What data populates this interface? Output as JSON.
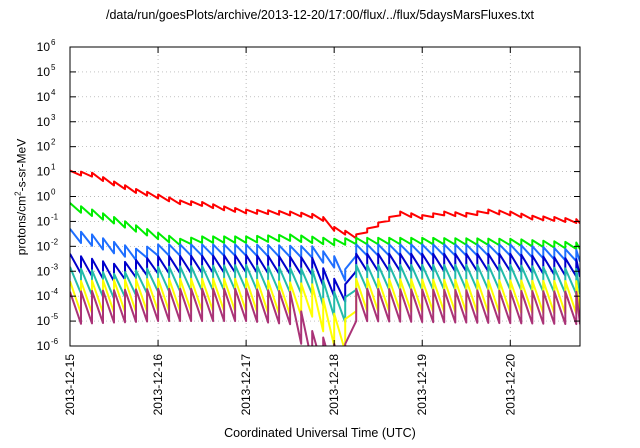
{
  "chart_data": {
    "type": "line",
    "title": "/data/run/goesPlots/archive/2013-12-20/17:00/flux/../flux/5daysMarsFluxes.txt",
    "xlabel": "Coordinated Universal Time (UTC)",
    "ylabel_parts": {
      "base": "protons/cm",
      "exp": "2",
      "rest": "-s-sr-MeV"
    },
    "yscale": "log",
    "ylim": [
      1e-06,
      1000000
    ],
    "y_ticks": [
      1e-06,
      1e-05,
      0.0001,
      0.001,
      0.01,
      0.1,
      1,
      10,
      100,
      1000,
      10000,
      100000,
      1000000
    ],
    "y_tick_labels": [
      {
        "base": "10",
        "exp": "-6"
      },
      {
        "base": "10",
        "exp": "-5"
      },
      {
        "base": "10",
        "exp": "-4"
      },
      {
        "base": "10",
        "exp": "-3"
      },
      {
        "base": "10",
        "exp": "-2"
      },
      {
        "base": "10",
        "exp": "-1"
      },
      {
        "base": "10",
        "exp": "0"
      },
      {
        "base": "10",
        "exp": "1"
      },
      {
        "base": "10",
        "exp": "2"
      },
      {
        "base": "10",
        "exp": "3"
      },
      {
        "base": "10",
        "exp": "4"
      },
      {
        "base": "10",
        "exp": "5"
      },
      {
        "base": "10",
        "exp": "6"
      }
    ],
    "x_ticks": [
      "2013-12-15",
      "2013-12-16",
      "2013-12-17",
      "2013-12-18",
      "2013-12-19",
      "2013-12-20"
    ],
    "xlim": [
      "2013-12-15",
      "2013-12-20 19:00"
    ],
    "grid": true,
    "grid_style": "dotted",
    "cycle_hours": 3,
    "series": [
      {
        "color": "#ff0000",
        "envelope": [
          [
            "2013-12-15 00:00",
            11
          ],
          [
            "2013-12-15 06:00",
            9
          ],
          [
            "2013-12-15 12:00",
            4
          ],
          [
            "2013-12-15 18:00",
            2
          ],
          [
            "2013-12-16 00:00",
            1.2
          ],
          [
            "2013-12-16 06:00",
            0.7
          ],
          [
            "2013-12-16 12:00",
            0.6
          ],
          [
            "2013-12-16 18:00",
            0.4
          ],
          [
            "2013-12-17 00:00",
            0.3
          ],
          [
            "2013-12-17 06:00",
            0.28
          ],
          [
            "2013-12-17 12:00",
            0.25
          ],
          [
            "2013-12-17 18:00",
            0.2
          ],
          [
            "2013-12-17 21:00",
            0.15
          ],
          [
            "2013-12-18 00:00",
            0.06
          ],
          [
            "2013-12-18 06:00",
            0.03
          ],
          [
            "2013-12-18 12:00",
            0.09
          ],
          [
            "2013-12-18 18:00",
            0.25
          ],
          [
            "2013-12-19 00:00",
            0.18
          ],
          [
            "2013-12-19 06:00",
            0.25
          ],
          [
            "2013-12-19 12:00",
            0.22
          ],
          [
            "2013-12-19 18:00",
            0.3
          ],
          [
            "2013-12-20 00:00",
            0.25
          ],
          [
            "2013-12-20 06:00",
            0.17
          ],
          [
            "2013-12-20 12:00",
            0.15
          ],
          [
            "2013-12-20 19:00",
            0.12
          ]
        ],
        "dip_ratio": 0.7
      },
      {
        "color": "#00ee00",
        "envelope": [
          [
            "2013-12-15 00:00",
            0.55
          ],
          [
            "2013-12-15 06:00",
            0.3
          ],
          [
            "2013-12-15 12:00",
            0.15
          ],
          [
            "2013-12-15 18:00",
            0.07
          ],
          [
            "2013-12-16 00:00",
            0.035
          ],
          [
            "2013-12-16 06:00",
            0.02
          ],
          [
            "2013-12-16 12:00",
            0.025
          ],
          [
            "2013-12-17 00:00",
            0.025
          ],
          [
            "2013-12-17 12:00",
            0.03
          ],
          [
            "2013-12-18 00:00",
            0.02
          ],
          [
            "2013-12-18 06:00",
            0.022
          ],
          [
            "2013-12-19 00:00",
            0.022
          ],
          [
            "2013-12-20 00:00",
            0.02
          ],
          [
            "2013-12-20 19:00",
            0.014
          ]
        ],
        "dip_ratio": 0.55
      },
      {
        "color": "#1f6fff",
        "envelope": [
          [
            "2013-12-15 00:00",
            0.05
          ],
          [
            "2013-12-15 06:00",
            0.03
          ],
          [
            "2013-12-15 12:00",
            0.015
          ],
          [
            "2013-12-15 18:00",
            0.008
          ],
          [
            "2013-12-16 00:00",
            0.012
          ],
          [
            "2013-12-17 00:00",
            0.012
          ],
          [
            "2013-12-17 18:00",
            0.01
          ],
          [
            "2013-12-18 00:00",
            0.004
          ],
          [
            "2013-12-18 03:00",
            0.0012
          ],
          [
            "2013-12-18 06:00",
            0.012
          ],
          [
            "2013-12-19 00:00",
            0.012
          ],
          [
            "2013-12-20 00:00",
            0.012
          ],
          [
            "2013-12-20 19:00",
            0.007
          ]
        ],
        "dip_ratio": 0.35
      },
      {
        "color": "#0000cc",
        "envelope": [
          [
            "2013-12-15 00:00",
            0.005
          ],
          [
            "2013-12-15 12:00",
            0.002
          ],
          [
            "2013-12-16 00:00",
            0.004
          ],
          [
            "2013-12-17 00:00",
            0.0045
          ],
          [
            "2013-12-17 18:00",
            0.0035
          ],
          [
            "2013-12-18 00:00",
            0.0005
          ],
          [
            "2013-12-18 03:00",
            0.0003
          ],
          [
            "2013-12-18 06:00",
            0.005
          ],
          [
            "2013-12-20 00:00",
            0.005
          ],
          [
            "2013-12-20 19:00",
            0.003
          ]
        ],
        "dip_ratio": 0.2
      },
      {
        "color": "#22bbaa",
        "envelope": [
          [
            "2013-12-15 00:00",
            0.0015
          ],
          [
            "2013-12-15 12:00",
            0.0008
          ],
          [
            "2013-12-16 00:00",
            0.0015
          ],
          [
            "2013-12-17 00:00",
            0.0018
          ],
          [
            "2013-12-17 18:00",
            0.0012
          ],
          [
            "2013-12-18 00:00",
            0.00015
          ],
          [
            "2013-12-18 03:00",
            9e-05
          ],
          [
            "2013-12-18 06:00",
            0.0018
          ],
          [
            "2013-12-20 00:00",
            0.0018
          ],
          [
            "2013-12-20 19:00",
            0.0012
          ]
        ],
        "dip_ratio": 0.1
      },
      {
        "color": "#ffff00",
        "envelope": [
          [
            "2013-12-15 00:00",
            0.0004
          ],
          [
            "2013-12-16 00:00",
            0.0005
          ],
          [
            "2013-12-17 00:00",
            0.0005
          ],
          [
            "2013-12-17 18:00",
            0.0003
          ],
          [
            "2013-12-18 00:00",
            2e-05
          ],
          [
            "2013-12-18 03:00",
            1.2e-05
          ],
          [
            "2013-12-18 06:00",
            0.0005
          ],
          [
            "2013-12-20 19:00",
            0.0004
          ]
        ],
        "dip_ratio": 0.05
      },
      {
        "color": "#aa3377",
        "envelope": [
          [
            "2013-12-15 00:00",
            0.00015
          ],
          [
            "2013-12-16 00:00",
            0.0002
          ],
          [
            "2013-12-17 00:00",
            0.0002
          ],
          [
            "2013-12-17 12:00",
            0.00015
          ],
          [
            "2013-12-17 18:00",
            4e-06
          ],
          [
            "2013-12-18 00:00",
            1.2e-06
          ],
          [
            "2013-12-18 03:00",
            1.2e-06
          ],
          [
            "2013-12-18 06:00",
            0.0002
          ],
          [
            "2013-12-20 19:00",
            0.00015
          ]
        ],
        "dip_ratio": 0.05
      }
    ]
  }
}
